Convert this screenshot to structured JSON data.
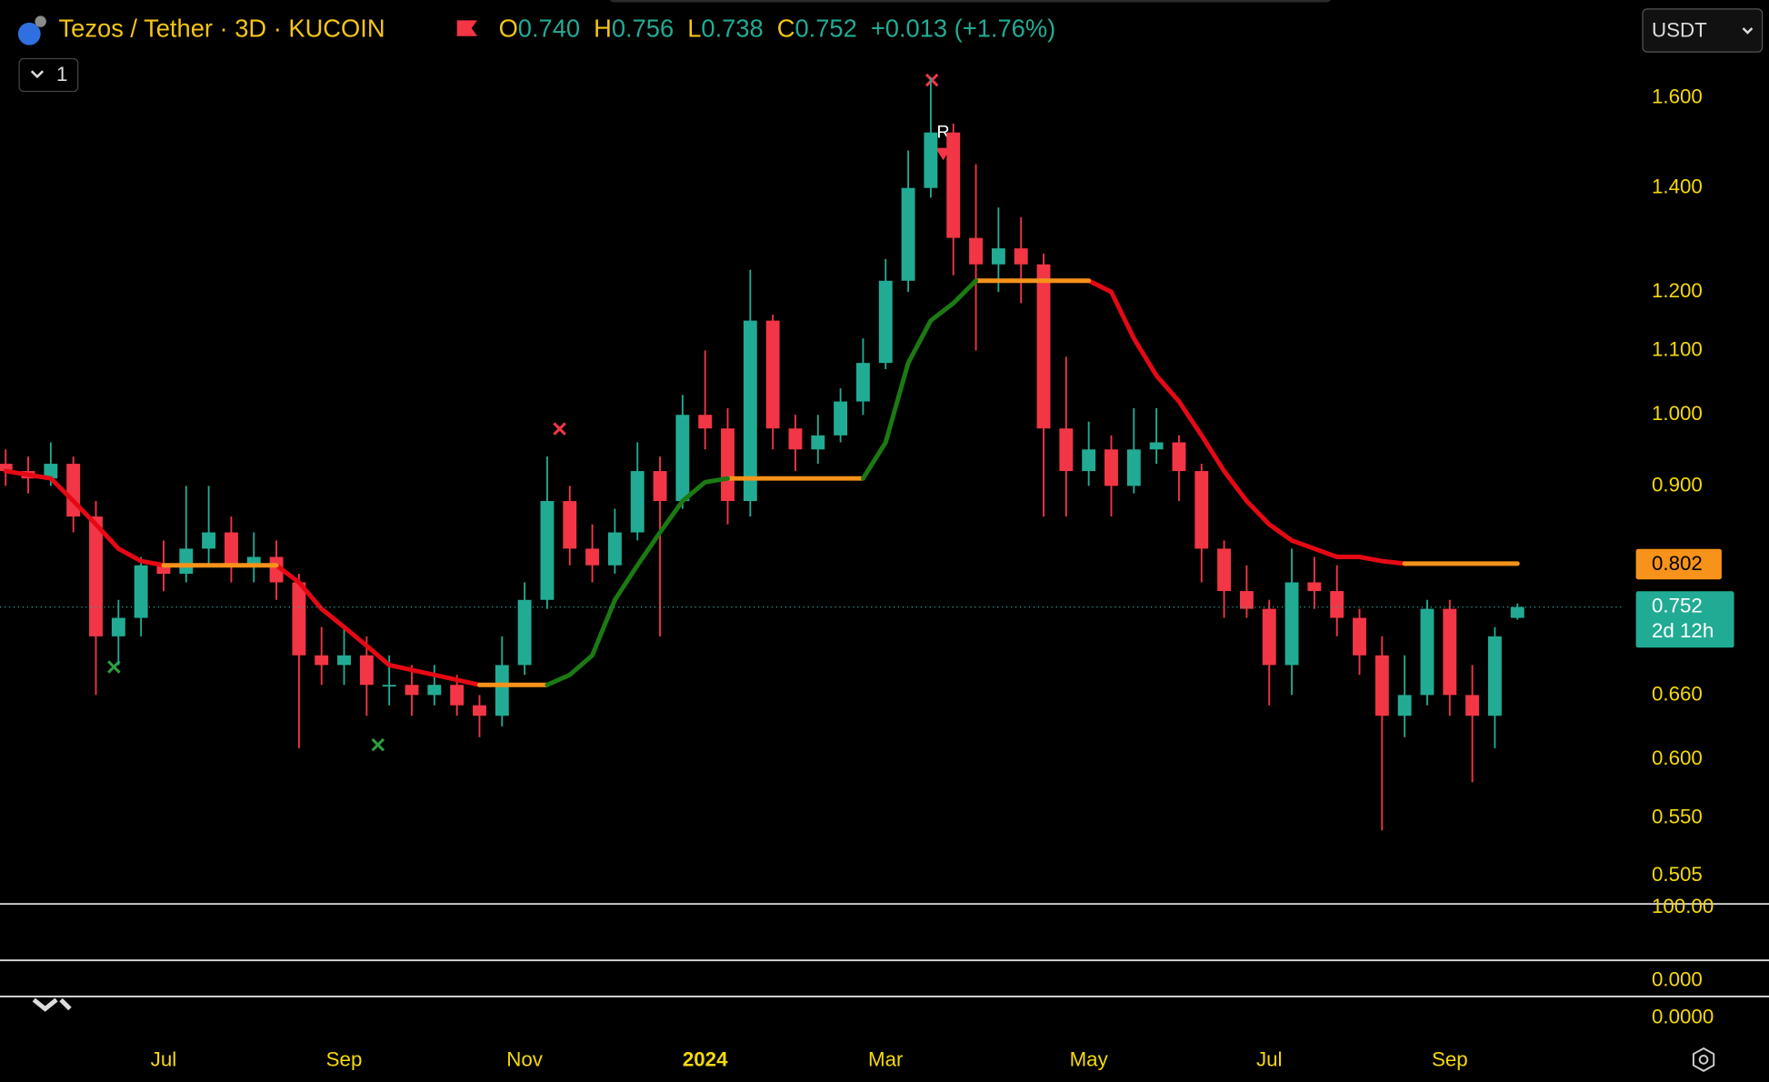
{
  "header": {
    "title": "Tezos / Tether · 3D · KUCOIN",
    "ohlc": [
      {
        "key": "O",
        "value": "0.740"
      },
      {
        "key": "H",
        "value": "0.756"
      },
      {
        "key": "L",
        "value": "0.738"
      },
      {
        "key": "C",
        "value": "0.752"
      }
    ],
    "change": "+0.013 (+1.76%)",
    "interval_button": "1",
    "currency": "USDT"
  },
  "panes": [
    "100.00",
    "0.000",
    "0.0000"
  ],
  "chart_data": {
    "type": "candlestick",
    "log_scale": true,
    "categories": [
      null,
      null,
      null,
      null,
      null,
      null,
      null,
      "Jul",
      null,
      null,
      null,
      null,
      null,
      null,
      null,
      "Sep",
      null,
      null,
      null,
      null,
      null,
      null,
      null,
      "Nov",
      null,
      null,
      null,
      null,
      null,
      null,
      null,
      "2024",
      null,
      null,
      null,
      null,
      null,
      null,
      null,
      "Mar",
      null,
      null,
      null,
      null,
      null,
      null,
      null,
      null,
      "May",
      null,
      null,
      null,
      null,
      null,
      null,
      null,
      "Jul",
      null,
      null,
      null,
      null,
      null,
      null,
      null,
      "Sep",
      null,
      null,
      null
    ],
    "ylim": [
      0.485,
      1.85
    ],
    "yticks": [
      {
        "value": 1.6,
        "label": "1.600"
      },
      {
        "value": 1.4,
        "label": "1.400"
      },
      {
        "value": 1.2,
        "label": "1.200"
      },
      {
        "value": 1.1,
        "label": "1.100"
      },
      {
        "value": 1.0,
        "label": "1.000"
      },
      {
        "value": 0.9,
        "label": "0.900"
      },
      {
        "value": 0.66,
        "label": "0.660"
      },
      {
        "value": 0.6,
        "label": "0.600"
      },
      {
        "value": 0.55,
        "label": "0.550"
      },
      {
        "value": 0.505,
        "label": "0.505"
      }
    ],
    "up_color": "#22ab94",
    "down_color": "#f23645",
    "open": [
      0.93,
      0.92,
      0.91,
      0.93,
      0.86,
      0.72,
      0.74,
      0.8,
      0.79,
      0.82,
      0.84,
      0.8,
      0.81,
      0.78,
      0.7,
      0.69,
      0.7,
      0.67,
      0.67,
      0.66,
      0.67,
      0.65,
      0.64,
      0.69,
      0.76,
      0.88,
      0.82,
      0.8,
      0.84,
      0.92,
      0.88,
      1.0,
      0.98,
      0.88,
      1.15,
      0.98,
      0.95,
      0.97,
      1.02,
      1.08,
      1.22,
      1.4,
      1.52,
      1.3,
      1.25,
      1.28,
      1.25,
      0.98,
      0.92,
      0.95,
      0.9,
      0.95,
      0.96,
      0.92,
      0.82,
      0.77,
      0.75,
      0.69,
      0.78,
      0.77,
      0.74,
      0.7,
      0.64,
      0.66,
      0.75,
      0.66,
      0.64,
      0.74
    ],
    "high": [
      0.95,
      0.94,
      0.96,
      0.94,
      0.88,
      0.76,
      0.81,
      0.83,
      0.9,
      0.9,
      0.86,
      0.84,
      0.83,
      0.79,
      0.73,
      0.73,
      0.72,
      0.7,
      0.69,
      0.69,
      0.68,
      0.66,
      0.72,
      0.78,
      0.94,
      0.9,
      0.85,
      0.87,
      0.96,
      0.94,
      1.03,
      1.1,
      1.01,
      1.24,
      1.16,
      1.0,
      1.0,
      1.04,
      1.12,
      1.26,
      1.48,
      1.65,
      1.54,
      1.45,
      1.36,
      1.34,
      1.27,
      1.09,
      0.99,
      0.97,
      1.01,
      1.01,
      0.97,
      0.93,
      0.83,
      0.8,
      0.76,
      0.82,
      0.81,
      0.8,
      0.75,
      0.72,
      0.7,
      0.76,
      0.76,
      0.69,
      0.73,
      0.756
    ],
    "low": [
      0.9,
      0.89,
      0.9,
      0.84,
      0.66,
      0.69,
      0.72,
      0.77,
      0.78,
      0.8,
      0.78,
      0.78,
      0.76,
      0.61,
      0.67,
      0.67,
      0.64,
      0.65,
      0.64,
      0.65,
      0.64,
      0.62,
      0.63,
      0.68,
      0.75,
      0.8,
      0.78,
      0.79,
      0.83,
      0.72,
      0.87,
      0.95,
      0.85,
      0.86,
      0.95,
      0.92,
      0.93,
      0.96,
      1.0,
      1.07,
      1.2,
      1.38,
      1.23,
      1.1,
      1.2,
      1.18,
      0.86,
      0.86,
      0.9,
      0.86,
      0.89,
      0.93,
      0.88,
      0.78,
      0.74,
      0.74,
      0.65,
      0.66,
      0.75,
      0.72,
      0.68,
      0.54,
      0.62,
      0.65,
      0.64,
      0.58,
      0.61,
      0.738
    ],
    "close": [
      0.92,
      0.91,
      0.93,
      0.86,
      0.72,
      0.74,
      0.8,
      0.79,
      0.82,
      0.84,
      0.8,
      0.81,
      0.78,
      0.7,
      0.69,
      0.7,
      0.67,
      0.67,
      0.66,
      0.67,
      0.65,
      0.64,
      0.69,
      0.76,
      0.88,
      0.82,
      0.8,
      0.84,
      0.92,
      0.88,
      1.0,
      0.98,
      0.88,
      1.15,
      0.98,
      0.95,
      0.97,
      1.02,
      1.08,
      1.22,
      1.4,
      1.52,
      1.3,
      1.25,
      1.28,
      1.25,
      0.98,
      0.92,
      0.95,
      0.9,
      0.95,
      0.96,
      0.92,
      0.82,
      0.77,
      0.75,
      0.69,
      0.78,
      0.77,
      0.74,
      0.7,
      0.64,
      0.66,
      0.75,
      0.66,
      0.64,
      0.72,
      0.752
    ],
    "lines": [
      {
        "color": "#e50914",
        "values": [
          0.92,
          0.915,
          0.91,
          0.88,
          0.85,
          0.82,
          0.805,
          0.8,
          null,
          null,
          null,
          null,
          0.8,
          0.78,
          0.75,
          0.73,
          0.71,
          0.69,
          0.685,
          0.68,
          0.675,
          0.67,
          null,
          null,
          null,
          null,
          null,
          null,
          null,
          null,
          null,
          null,
          null,
          null,
          null,
          null,
          null,
          null,
          null,
          null,
          null,
          null,
          null,
          null,
          null,
          null,
          null,
          null,
          1.22,
          1.2,
          1.12,
          1.06,
          1.02,
          0.97,
          0.92,
          0.88,
          0.85,
          0.83,
          0.82,
          0.81,
          0.81,
          0.805,
          0.802,
          null,
          null,
          null,
          null,
          null
        ]
      },
      {
        "color": "#f7931a",
        "values": [
          null,
          null,
          null,
          null,
          null,
          null,
          null,
          0.8,
          0.8,
          0.8,
          0.8,
          0.8,
          0.8,
          null,
          null,
          null,
          null,
          null,
          null,
          null,
          null,
          0.67,
          0.67,
          0.67,
          0.67,
          null,
          null,
          null,
          null,
          null,
          null,
          null,
          0.91,
          0.91,
          0.91,
          0.91,
          0.91,
          0.91,
          0.91,
          null,
          null,
          null,
          null,
          1.22,
          1.22,
          1.22,
          1.22,
          1.22,
          1.22,
          null,
          null,
          null,
          null,
          null,
          null,
          null,
          null,
          null,
          null,
          null,
          null,
          null,
          0.802,
          0.802,
          0.802,
          0.802,
          0.802,
          0.802
        ]
      },
      {
        "color": "#1b7a12",
        "values": [
          null,
          null,
          null,
          null,
          null,
          null,
          null,
          null,
          null,
          null,
          null,
          null,
          null,
          null,
          null,
          null,
          null,
          null,
          null,
          null,
          null,
          null,
          null,
          null,
          0.67,
          0.68,
          0.7,
          0.76,
          0.8,
          0.84,
          0.88,
          0.905,
          0.91,
          null,
          null,
          null,
          null,
          null,
          0.91,
          0.96,
          1.08,
          1.15,
          1.18,
          1.22,
          null,
          null,
          null,
          null,
          null,
          null,
          null,
          null,
          null,
          null,
          null,
          null,
          null,
          null,
          null,
          null,
          null,
          null,
          null,
          null,
          null,
          null,
          null,
          null
        ]
      }
    ],
    "countdown": "2d 12h",
    "annotations": [
      "R"
    ]
  }
}
